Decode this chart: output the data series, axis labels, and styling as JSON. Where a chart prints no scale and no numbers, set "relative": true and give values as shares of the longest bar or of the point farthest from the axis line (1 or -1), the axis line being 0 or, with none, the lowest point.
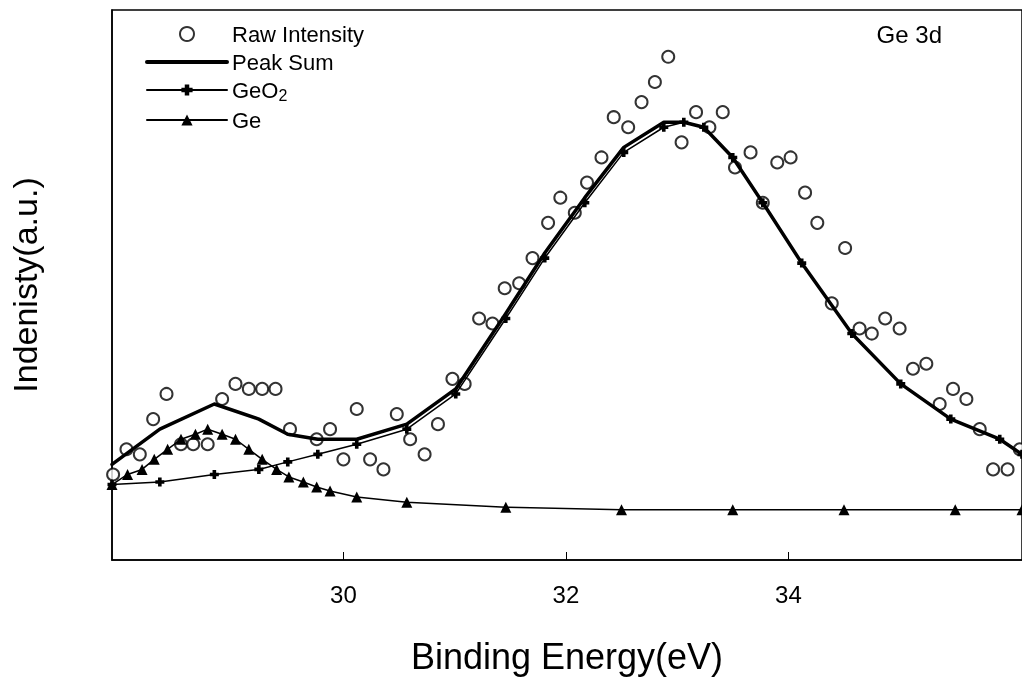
{
  "chart_data": {
    "type": "line",
    "relative": true,
    "xlabel": "Binding Energy(eV)",
    "ylabel": "Indenisty(a.u.)",
    "annotations": [
      "Ge 3d"
    ],
    "xlim": [
      27.92,
      36.1
    ],
    "xticks": [
      30,
      32,
      34
    ],
    "legend": "top left",
    "grid": false,
    "series": [
      {
        "name": "Raw Intensity",
        "type": "scatter",
        "marker": "circle",
        "color": "#000000",
        "x": [
          27.93,
          28.05,
          28.17,
          28.29,
          28.41,
          28.54,
          28.65,
          28.78,
          28.91,
          29.03,
          29.15,
          29.27,
          29.39,
          29.52,
          29.76,
          29.88,
          30.0,
          30.12,
          30.24,
          30.36,
          30.48,
          30.6,
          30.73,
          30.85,
          30.98,
          31.09,
          31.22,
          31.34,
          31.45,
          31.58,
          31.7,
          31.84,
          31.95,
          32.08,
          32.19,
          32.32,
          32.43,
          32.56,
          32.68,
          32.8,
          32.92,
          33.04,
          33.17,
          33.29,
          33.41,
          33.52,
          33.66,
          33.77,
          33.9,
          34.02,
          34.15,
          34.26,
          34.39,
          34.51,
          34.64,
          34.75,
          34.87,
          35.0,
          35.12,
          35.24,
          35.36,
          35.48,
          35.6,
          35.72,
          35.84,
          35.97,
          36.08
        ],
        "values": [
          0.17,
          0.22,
          0.21,
          0.28,
          0.33,
          0.23,
          0.23,
          0.23,
          0.32,
          0.35,
          0.34,
          0.34,
          0.34,
          0.26,
          0.24,
          0.26,
          0.2,
          0.3,
          0.2,
          0.18,
          0.29,
          0.24,
          0.21,
          0.27,
          0.36,
          0.35,
          0.48,
          0.47,
          0.54,
          0.55,
          0.6,
          0.67,
          0.72,
          0.69,
          0.75,
          0.8,
          0.88,
          0.86,
          0.91,
          0.95,
          1.0,
          0.83,
          0.89,
          0.86,
          0.89,
          0.78,
          0.81,
          0.71,
          0.79,
          0.8,
          0.73,
          0.67,
          0.51,
          0.62,
          0.46,
          0.45,
          0.48,
          0.46,
          0.38,
          0.39,
          0.31,
          0.34,
          0.32,
          0.26,
          0.18,
          0.18,
          0.22
        ]
      },
      {
        "name": "Peak Sum",
        "marker": "none",
        "color": "#000000",
        "x": [
          27.92,
          28.35,
          28.84,
          29.24,
          29.5,
          29.77,
          30.12,
          30.57,
          31.01,
          31.46,
          31.81,
          32.17,
          32.52,
          32.88,
          33.06,
          33.24,
          33.5,
          33.77,
          34.12,
          34.57,
          35.01,
          35.46,
          35.9,
          36.1
        ],
        "values": [
          0.19,
          0.26,
          0.31,
          0.28,
          0.25,
          0.24,
          0.24,
          0.27,
          0.34,
          0.49,
          0.61,
          0.72,
          0.82,
          0.87,
          0.87,
          0.86,
          0.8,
          0.71,
          0.59,
          0.45,
          0.35,
          0.28,
          0.24,
          0.21
        ]
      },
      {
        "name": "GeO$_{2}$",
        "marker": "cross",
        "color": "#000000",
        "x": [
          27.92,
          28.35,
          28.84,
          29.24,
          29.5,
          29.77,
          30.12,
          30.57,
          31.01,
          31.46,
          31.81,
          32.17,
          32.52,
          32.88,
          33.06,
          33.24,
          33.5,
          33.77,
          34.12,
          34.57,
          35.01,
          35.46,
          35.9,
          36.1
        ],
        "values": [
          0.15,
          0.155,
          0.17,
          0.18,
          0.195,
          0.21,
          0.23,
          0.26,
          0.33,
          0.48,
          0.6,
          0.71,
          0.81,
          0.86,
          0.87,
          0.86,
          0.8,
          0.71,
          0.59,
          0.45,
          0.35,
          0.28,
          0.24,
          0.21
        ]
      },
      {
        "name": "Ge",
        "marker": "triangle",
        "color": "#000000",
        "x": [
          27.92,
          28.06,
          28.19,
          28.3,
          28.42,
          28.54,
          28.67,
          28.78,
          28.91,
          29.03,
          29.15,
          29.27,
          29.4,
          29.51,
          29.64,
          29.76,
          29.88,
          30.12,
          30.57,
          31.46,
          32.5,
          33.5,
          34.5,
          35.5,
          36.1
        ],
        "values": [
          0.15,
          0.17,
          0.18,
          0.2,
          0.22,
          0.24,
          0.25,
          0.26,
          0.25,
          0.24,
          0.22,
          0.2,
          0.18,
          0.165,
          0.155,
          0.145,
          0.137,
          0.125,
          0.115,
          0.105,
          0.1,
          0.1,
          0.1,
          0.1,
          0.1
        ]
      }
    ]
  }
}
